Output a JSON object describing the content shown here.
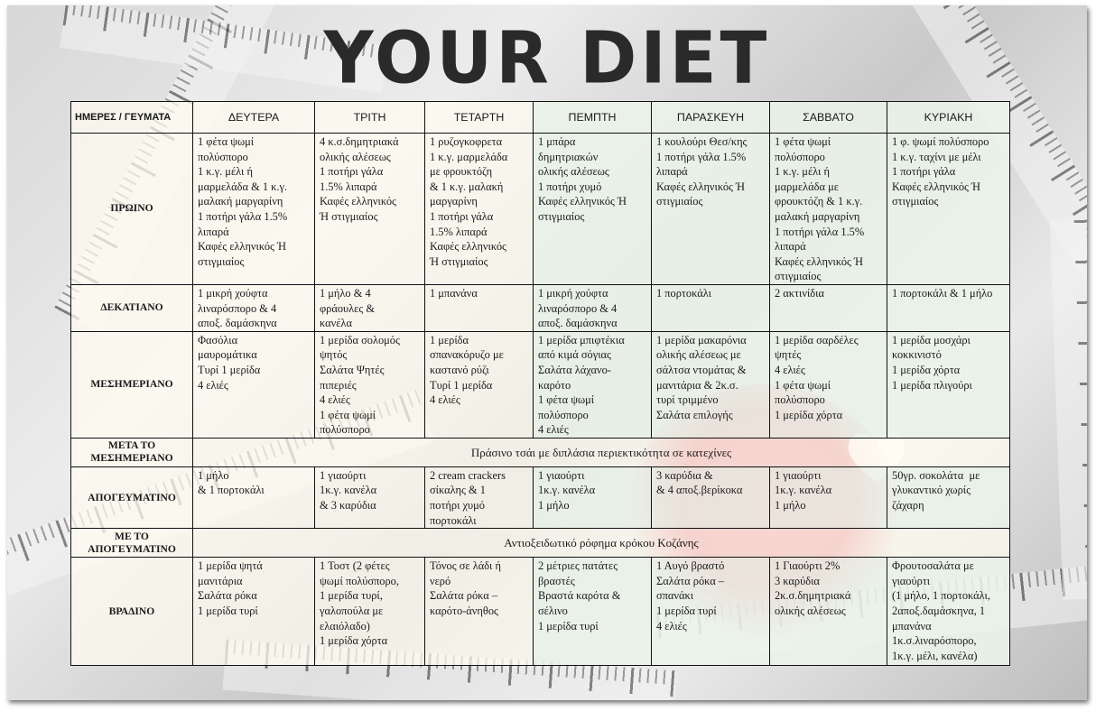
{
  "title": "YOUR DIET",
  "colors": {
    "title": "#2a2a2a",
    "table_border": "#111111",
    "table_bg": "#fffcf0",
    "photo_accent": "#e85a6a"
  },
  "icons": [
    "heart-icon"
  ],
  "table": {
    "corner_label": "ΗΜΕΡΕΣ / ΓΕΥΜΑΤΑ",
    "days": [
      "ΔΕΥΤΕΡΑ",
      "ΤΡΙΤΗ",
      "ΤΕΤΑΡΤΗ",
      "ΠΕΜΠΤΗ",
      "ΠΑΡΑΣΚΕΥΗ",
      "ΣΑΒΒΑΤΟ",
      "ΚΥΡΙΑΚΗ"
    ],
    "rows": [
      {
        "meal": "ΠΡΩΙΝΟ",
        "cells": [
          [
            "1 φέτα ψωμί",
            "πολύσπορο",
            "1 κ.γ. μέλι ή",
            "μαρμελάδα & 1 κ.γ.",
            "μαλακή μαργαρίνη",
            "1 ποτήρι γάλα 1.5%",
            "λιπαρά",
            "Καφές ελληνικός Ή",
            "στιγμιαίος"
          ],
          [
            "4 κ.σ.δημητριακά",
            "ολικής αλέσεως",
            "1 ποτήρι γάλα",
            "1.5% λιπαρά",
            "Καφές ελληνικός",
            "Ή στιγμιαίος"
          ],
          [
            "1 ρυζογκοφρετα",
            "1 κ.γ. μαρμελάδα",
            "με φρουκτόζη",
            "& 1 κ.γ. μαλακή",
            "μαργαρίνη",
            "1 ποτήρι γάλα",
            "1.5% λιπαρά",
            "Καφές ελληνικός",
            "Ή στιγμιαίος"
          ],
          [
            "1 μπάρα",
            "δημητριακών",
            "ολικής αλέσεως",
            "1 ποτήρι χυμό",
            "Καφές ελληνικός Ή",
            "στιγμιαίος"
          ],
          [
            "1 κουλούρι Θεσ/κης",
            "1 ποτήρι γάλα 1.5%",
            "λιπαρά",
            "Καφές ελληνικός Ή",
            "στιγμιαίος"
          ],
          [
            "1 φέτα ψωμί",
            "πολύσπορο",
            "1 κ.γ. μέλι ή",
            "μαρμελάδα με",
            "φρουκτόζη & 1 κ.γ.",
            "μαλακή μαργαρίνη",
            "1 ποτήρι γάλα 1.5%",
            "λιπαρά",
            "Καφές ελληνικός Ή",
            "στιγμιαίος"
          ],
          [
            "1 φ. ψωμί πολύσπορο",
            "1 κ.γ. ταχίνι με μέλι",
            "1 ποτήρι γάλα",
            "Καφές ελληνικός Ή",
            "στιγμιαίος"
          ]
        ]
      },
      {
        "meal": "ΔΕΚΑΤΙΑΝΟ",
        "cells": [
          [
            "1 μικρή χούφτα",
            "λιναρόσπορο & 4",
            "αποξ. δαμάσκηνα"
          ],
          [
            "1 μήλο & 4",
            "φράουλες &",
            "κανέλα"
          ],
          [
            "1 μπανάνα"
          ],
          [
            "1 μικρή χούφτα",
            "λιναρόσπορο & 4",
            "αποξ. δαμάσκηνα"
          ],
          [
            "1 πορτοκάλι"
          ],
          [
            "2 ακτινίδια"
          ],
          [
            "1 πορτοκάλι & 1 μήλο"
          ]
        ]
      },
      {
        "meal": "ΜΕΣΗΜΕΡΙΑΝΟ",
        "cells": [
          [
            "Φασόλια",
            "μαυρομάτικα",
            "Τυρί 1 μερίδα",
            "4 ελιές"
          ],
          [
            "1 μερίδα σολομός",
            "ψητός",
            "Σαλάτα Ψητές",
            "πιπεριές",
            "4 ελιές",
            "1 φέτα ψωμί",
            "πολύσπορο"
          ],
          [
            "1 μερίδα",
            "σπανακόρυζο με",
            "καστανό ρύζι",
            "Τυρί 1 μερίδα",
            "4 ελιές"
          ],
          [
            "1 μερίδα μπιφτέκια",
            "από κιμά σόγιας",
            "Σαλάτα λάχανο-",
            "καρότο",
            "1 φέτα ψωμί",
            "πολύσπορο",
            "4 ελιές"
          ],
          [
            "1 μερίδα μακαρόνια",
            "ολικής αλέσεως με",
            "σάλτσα ντομάτας &",
            "μανιτάρια & 2κ.σ.",
            "τυρί τριμμένο",
            "Σαλάτα επιλογής"
          ],
          [
            "1 μερίδα σαρδέλες",
            "ψητές",
            "4 ελιές",
            "1 φέτα ψωμί",
            "πολύσπορο",
            "1 μερίδα χόρτα"
          ],
          [
            "1 μερίδα μοσχάρι",
            "κοκκινιστό",
            "1 μερίδα χόρτα",
            "1 μερίδα πλιγούρι"
          ]
        ]
      },
      {
        "meal": "ΜΕΤΑ ΤΟ ΜΕΣΗΜΕΡΙΑΝΟ",
        "span": "Πράσινο τσάι με διπλάσια περιεκτικότητα σε κατεχίνες"
      },
      {
        "meal": "ΑΠΟΓΕΥΜΑΤΙΝΟ",
        "cells": [
          [
            "1 μήλο",
            "& 1 πορτοκάλι"
          ],
          [
            "1 γιαούρτι",
            "1κ.γ. κανέλα",
            "& 3 καρύδια"
          ],
          [
            "2 cream crackers",
            "σίκαλης & 1",
            "ποτήρι χυμό",
            "πορτοκάλι"
          ],
          [
            "1 γιαούρτι",
            "1κ.γ. κανέλα",
            "1 μήλο"
          ],
          [
            "3 καρύδια &",
            "& 4 αποξ.βερίκοκα"
          ],
          [
            "1 γιαούρτι",
            "1κ.γ. κανέλα",
            "1 μήλο"
          ],
          [
            "50γρ. σοκολάτα  με",
            "γλυκαντικό χωρίς",
            "ζάχαρη"
          ]
        ]
      },
      {
        "meal": "ΜΕ ΤΟ ΑΠΟΓΕΥΜΑΤΙΝΟ",
        "span": "Αντιοξειδωτικό ρόφημα κρόκου Κοζάνης"
      },
      {
        "meal": "ΒΡΑΔΙΝΟ",
        "cells": [
          [
            "1 μερίδα ψητά",
            "μανιτάρια",
            "Σαλάτα ρόκα",
            "1 μερίδα τυρί"
          ],
          [
            "1 Τοστ (2 φέτες",
            "ψωμί πολύσπορο,",
            "1 μερίδα τυρί,",
            "γαλοπούλα με",
            "ελαιόλαδο)",
            "1 μερίδα χόρτα"
          ],
          [
            "Τόνος σε λάδι ή",
            "νερό",
            "Σαλάτα ρόκα –",
            "καρότο-άνηθος"
          ],
          [
            "2 μέτριες πατάτες",
            "βραστές",
            "Βραστά καρότα &",
            "σέλινο",
            "1 μερίδα τυρί"
          ],
          [
            "1 Αυγό βραστό",
            "Σαλάτα ρόκα –",
            "σπανάκι",
            "1 μερίδα τυρί",
            "4 ελιές"
          ],
          [
            "1 Γιαούρτι 2%",
            "3 καρύδια",
            "2κ.σ.δημητριακά",
            "ολικής αλέσεως"
          ],
          [
            "Φρουτοσαλάτα με",
            "γιαούρτι",
            "(1 μήλο, 1 πορτοκάλι,",
            "2αποξ.δαμάσκηνα, 1",
            "μπανάνα",
            "1κ.σ.λιναρόσπορο,",
            "1κ.γ. μέλι, κανέλα)"
          ]
        ]
      }
    ]
  }
}
